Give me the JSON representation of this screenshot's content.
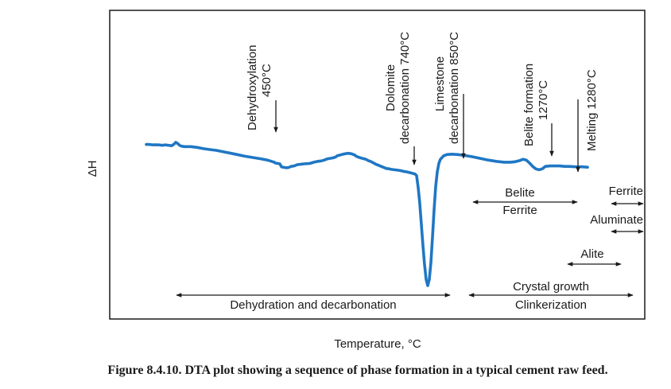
{
  "chart_data": {
    "type": "line",
    "title": "",
    "xlabel": "Temperature, °C",
    "ylabel": "ΔH",
    "grid": false,
    "legend": "none",
    "series": [
      {
        "name": "",
        "color": "#1f77c4",
        "points": [
          [
            0.0,
            0.2
          ],
          [
            4.0,
            0.2
          ],
          [
            8.0,
            0.21
          ],
          [
            12.0,
            0.21
          ],
          [
            16.0,
            0.21
          ],
          [
            20.0,
            0.22
          ],
          [
            24.0,
            0.21
          ],
          [
            28.0,
            0.22
          ],
          [
            32.0,
            0.23
          ],
          [
            35.0,
            0.19
          ],
          [
            37.0,
            0.15
          ],
          [
            39.0,
            0.17
          ],
          [
            42.0,
            0.22
          ],
          [
            44.0,
            0.24
          ],
          [
            48.0,
            0.25
          ],
          [
            52.0,
            0.25
          ],
          [
            56.0,
            0.25
          ],
          [
            60.0,
            0.26
          ],
          [
            64.0,
            0.27
          ],
          [
            72.0,
            0.3
          ],
          [
            80.0,
            0.32
          ],
          [
            88.0,
            0.34
          ],
          [
            96.0,
            0.37
          ],
          [
            104.0,
            0.4
          ],
          [
            112.0,
            0.43
          ],
          [
            124.0,
            0.48
          ],
          [
            134.0,
            0.51
          ],
          [
            144.0,
            0.54
          ],
          [
            152.0,
            0.57
          ],
          [
            156.0,
            0.59
          ],
          [
            159.0,
            0.61
          ],
          [
            161.0,
            0.62
          ],
          [
            162.0,
            0.64
          ],
          [
            165.0,
            0.65
          ],
          [
            168.0,
            0.66
          ],
          [
            170.0,
            0.73
          ],
          [
            175.0,
            0.75
          ],
          [
            178.0,
            0.75
          ],
          [
            180.0,
            0.74
          ],
          [
            182.0,
            0.72
          ],
          [
            186.0,
            0.71
          ],
          [
            190.0,
            0.68
          ],
          [
            198.0,
            0.66
          ],
          [
            206.0,
            0.65
          ],
          [
            211.0,
            0.62
          ],
          [
            216.0,
            0.6
          ],
          [
            220.0,
            0.59
          ],
          [
            224.0,
            0.57
          ],
          [
            228.0,
            0.54
          ],
          [
            234.0,
            0.52
          ],
          [
            238.0,
            0.5
          ],
          [
            240.0,
            0.47
          ],
          [
            244.0,
            0.45
          ],
          [
            250.0,
            0.42
          ],
          [
            254.0,
            0.41
          ],
          [
            258.0,
            0.42
          ],
          [
            262.0,
            0.45
          ],
          [
            264.0,
            0.48
          ],
          [
            268.0,
            0.51
          ],
          [
            272.0,
            0.53
          ],
          [
            274.0,
            0.54
          ],
          [
            276.0,
            0.55
          ],
          [
            278.0,
            0.57
          ],
          [
            280.0,
            0.59
          ],
          [
            282.0,
            0.6
          ],
          [
            284.0,
            0.62
          ],
          [
            286.0,
            0.64
          ],
          [
            288.0,
            0.66
          ],
          [
            290.0,
            0.68
          ],
          [
            292.0,
            0.69
          ],
          [
            294.0,
            0.71
          ],
          [
            298.0,
            0.74
          ],
          [
            302.0,
            0.77
          ],
          [
            306.0,
            0.78
          ],
          [
            308.0,
            0.79
          ],
          [
            312.0,
            0.8
          ],
          [
            316.0,
            0.81
          ],
          [
            320.0,
            0.82
          ],
          [
            322.0,
            0.83
          ],
          [
            324.0,
            0.84
          ],
          [
            328.0,
            0.85
          ],
          [
            330.0,
            0.86
          ],
          [
            332.0,
            0.87
          ],
          [
            336.0,
            0.89
          ],
          [
            338.0,
            0.9
          ],
          [
            340.0,
            0.94
          ],
          [
            342.0,
            1.22
          ],
          [
            344.0,
            1.6
          ],
          [
            346.0,
            2.1
          ],
          [
            348.0,
            2.6
          ],
          [
            350.0,
            3.05
          ],
          [
            352.0,
            3.4
          ],
          [
            354.0,
            3.55
          ],
          [
            356.0,
            3.4
          ],
          [
            358.0,
            3.0
          ],
          [
            360.0,
            2.4
          ],
          [
            362.0,
            1.75
          ],
          [
            364.0,
            1.2
          ],
          [
            366.0,
            0.85
          ],
          [
            368.0,
            0.65
          ],
          [
            370.0,
            0.55
          ],
          [
            374.0,
            0.47
          ],
          [
            378.0,
            0.44
          ],
          [
            384.0,
            0.43
          ],
          [
            392.0,
            0.44
          ],
          [
            400.0,
            0.46
          ],
          [
            410.0,
            0.49
          ],
          [
            420.0,
            0.53
          ],
          [
            430.0,
            0.57
          ],
          [
            440.0,
            0.6
          ],
          [
            450.0,
            0.62
          ],
          [
            458.0,
            0.62
          ],
          [
            464.0,
            0.61
          ],
          [
            470.0,
            0.58
          ],
          [
            474.0,
            0.55
          ],
          [
            478.0,
            0.57
          ],
          [
            482.0,
            0.64
          ],
          [
            486.0,
            0.72
          ],
          [
            490.0,
            0.78
          ],
          [
            494.0,
            0.8
          ],
          [
            498.0,
            0.78
          ],
          [
            502.0,
            0.72
          ],
          [
            508.0,
            0.71
          ],
          [
            514.0,
            0.71
          ],
          [
            520.0,
            0.71
          ],
          [
            526.0,
            0.72
          ],
          [
            532.0,
            0.72
          ],
          [
            540.0,
            0.73
          ],
          [
            548.0,
            0.73
          ],
          [
            555.0,
            0.74
          ]
        ]
      }
    ],
    "annotations": {
      "peaks": [
        {
          "lines": [
            "Dehydroxylation",
            "450°C"
          ]
        },
        {
          "lines": [
            "Dolomite",
            "decarbonation 740°C"
          ]
        },
        {
          "lines": [
            "Limestone",
            "decarbonation 850°C"
          ]
        },
        {
          "lines": [
            "Belite formation",
            "1270°C"
          ]
        },
        {
          "lines": [
            "Melting 1280°C"
          ]
        }
      ],
      "ranges": {
        "dehydration": "Dehydration and decarbonation",
        "belite": "Belite",
        "ferrite_mid": "Ferrite",
        "ferrite_right": "Ferrite",
        "aluminate": "Aluminate",
        "alite": "Alite",
        "crystal_growth": "Crystal growth",
        "clinkerization": "Clinkerization"
      }
    }
  },
  "caption": "Figure 8.4.10. DTA plot showing a sequence of phase formation in a typical cement raw feed."
}
